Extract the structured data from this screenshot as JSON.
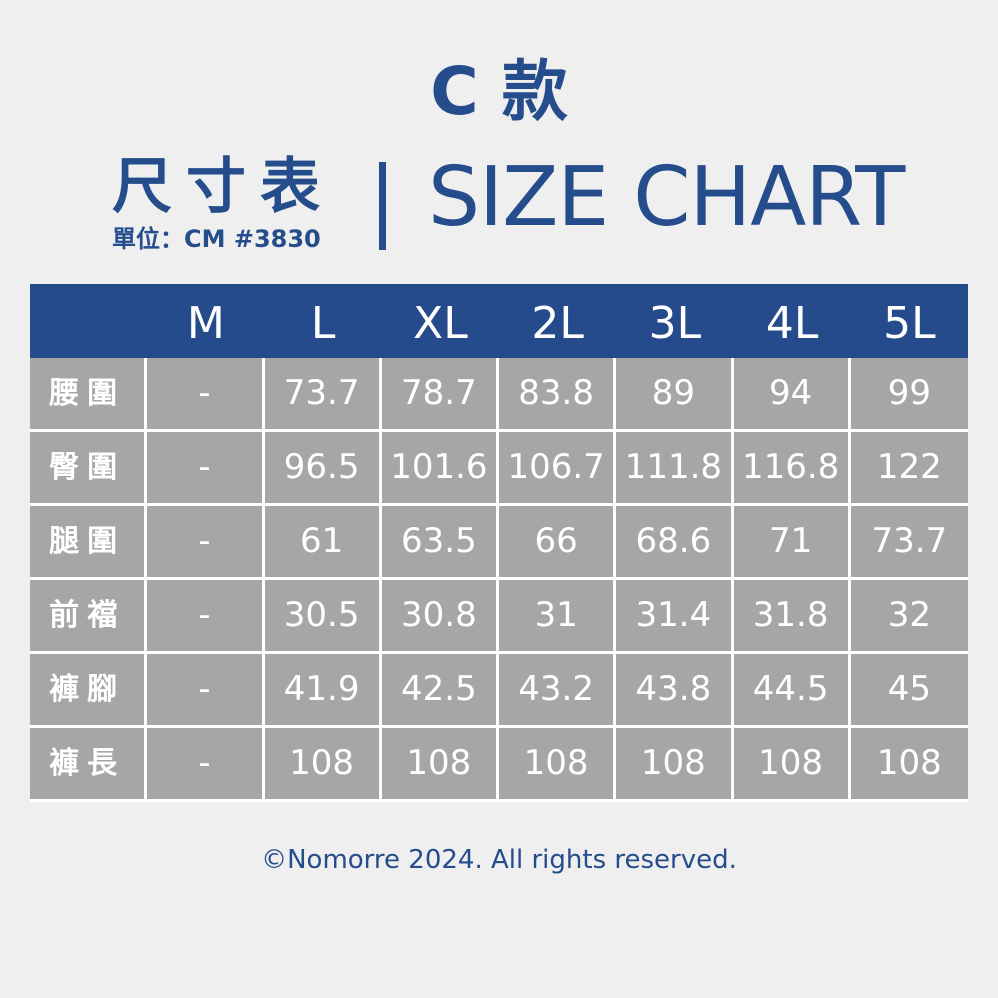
{
  "header": {
    "style_title": "C 款",
    "title_zh": "尺寸表",
    "title_en": "SIZE CHART",
    "unit": "單位：CM #3830"
  },
  "table": {
    "columns": [
      "",
      "M",
      "L",
      "XL",
      "2L",
      "3L",
      "4L",
      "5L"
    ],
    "rows": [
      {
        "label": "腰圍",
        "values": [
          "-",
          "73.7",
          "78.7",
          "83.8",
          "89",
          "94",
          "99"
        ]
      },
      {
        "label": "臀圍",
        "values": [
          "-",
          "96.5",
          "101.6",
          "106.7",
          "111.8",
          "116.8",
          "122"
        ]
      },
      {
        "label": "腿圍",
        "values": [
          "-",
          "61",
          "63.5",
          "66",
          "68.6",
          "71",
          "73.7"
        ]
      },
      {
        "label": "前襠",
        "values": [
          "-",
          "30.5",
          "30.8",
          "31",
          "31.4",
          "31.8",
          "32"
        ]
      },
      {
        "label": "褲腳",
        "values": [
          "-",
          "41.9",
          "42.5",
          "43.2",
          "43.8",
          "44.5",
          "45"
        ]
      },
      {
        "label": "褲長",
        "values": [
          "-",
          "108",
          "108",
          "108",
          "108",
          "108",
          "108"
        ]
      }
    ]
  },
  "footer": {
    "copyright": "©Nomorre 2024. All rights reserved."
  },
  "colors": {
    "brand_blue": "#264b8c",
    "cell_gray": "#a6a6a6",
    "background": "#efefef"
  }
}
